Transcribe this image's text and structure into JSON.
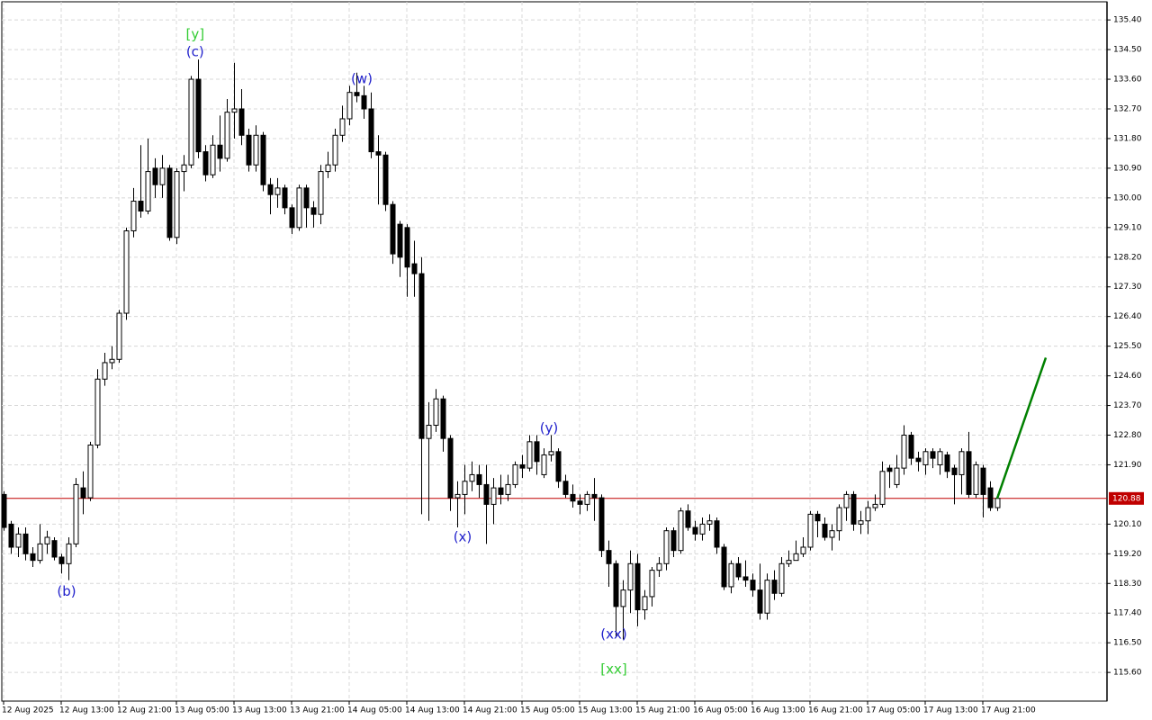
{
  "chart_data": {
    "type": "candlestick",
    "open": [
      121.0,
      120.1,
      119.4,
      119.8,
      119.2,
      119.0,
      119.5,
      119.6,
      119.1,
      118.9,
      119.5,
      121.2,
      120.9,
      122.5,
      124.5,
      125.0,
      125.1,
      126.5,
      129.0,
      129.9,
      129.6,
      130.9,
      130.4,
      130.9,
      128.8,
      130.8,
      131.0,
      133.6,
      131.4,
      130.7,
      131.6,
      131.2,
      132.6,
      132.7,
      131.9,
      131.0,
      131.9,
      130.4,
      130.1,
      130.3,
      129.7,
      129.1,
      130.3,
      129.7,
      129.5,
      130.8,
      131.0,
      131.9,
      132.4,
      133.2,
      133.1,
      132.7,
      131.4,
      131.3,
      129.8,
      129.2,
      129.1,
      128.0,
      127.7,
      122.7,
      123.1,
      123.9,
      122.7,
      120.9,
      121.0,
      121.4,
      121.6,
      121.3,
      120.7,
      121.2,
      121.0,
      121.3,
      121.9,
      121.8,
      122.6,
      121.6,
      122.2,
      122.3,
      121.4,
      121.0,
      120.8,
      120.7,
      121.0,
      120.9,
      119.3,
      118.9,
      117.6,
      118.1,
      118.9,
      117.5,
      117.9,
      118.7,
      118.9,
      119.9,
      119.3,
      120.5,
      120.0,
      119.8,
      120.1,
      120.2,
      119.4,
      118.2,
      118.9,
      118.5,
      118.4,
      118.1,
      117.4,
      118.4,
      118.0,
      118.9,
      119.0,
      119.2,
      119.4,
      120.4,
      120.1,
      119.7,
      119.9,
      120.6,
      121.0,
      120.1,
      120.2,
      120.6,
      120.7,
      121.8,
      121.3,
      121.8,
      122.8,
      122.1,
      121.9,
      122.3,
      121.9,
      122.2,
      121.8,
      121.6,
      122.3,
      121.0,
      121.8,
      121.2,
      120.6
    ],
    "high": [
      121.1,
      120.2,
      120.0,
      120.0,
      119.4,
      120.1,
      119.9,
      119.7,
      119.2,
      119.7,
      121.5,
      121.7,
      122.6,
      124.8,
      125.3,
      125.5,
      126.6,
      129.1,
      130.3,
      131.6,
      131.8,
      131.2,
      131.3,
      131.0,
      130.9,
      131.3,
      133.7,
      134.2,
      131.6,
      131.9,
      132.5,
      133.0,
      134.1,
      133.3,
      132.1,
      132.2,
      132.0,
      130.6,
      130.6,
      130.4,
      129.8,
      130.4,
      130.4,
      129.9,
      131.0,
      131.4,
      132.1,
      132.8,
      133.4,
      133.8,
      133.4,
      133.2,
      131.9,
      131.4,
      129.9,
      129.3,
      129.2,
      128.7,
      128.2,
      123.8,
      124.2,
      124.0,
      122.8,
      121.4,
      121.9,
      122.0,
      121.9,
      121.9,
      121.5,
      121.6,
      121.6,
      122.0,
      122.2,
      122.8,
      122.8,
      122.4,
      122.8,
      122.4,
      121.6,
      121.3,
      121.0,
      121.1,
      121.5,
      121.0,
      119.6,
      119.0,
      118.4,
      119.3,
      119.2,
      118.1,
      118.8,
      119.1,
      120.0,
      120.0,
      120.6,
      120.7,
      120.2,
      120.3,
      120.4,
      120.3,
      119.5,
      119.0,
      119.1,
      119.0,
      118.6,
      118.9,
      118.6,
      118.7,
      119.1,
      119.3,
      119.6,
      119.7,
      120.5,
      120.5,
      120.3,
      120.1,
      120.7,
      121.1,
      121.1,
      120.5,
      120.8,
      121.0,
      122.0,
      121.9,
      122.2,
      123.1,
      122.9,
      122.3,
      122.4,
      122.4,
      122.4,
      122.3,
      121.9,
      122.4,
      122.9,
      122.0,
      121.9,
      121.4,
      121.0
    ],
    "low": [
      119.9,
      119.2,
      119.1,
      119.0,
      118.8,
      118.9,
      119.2,
      119.0,
      118.6,
      118.4,
      119.4,
      120.4,
      120.8,
      122.4,
      124.3,
      124.8,
      125.0,
      126.3,
      128.8,
      129.4,
      129.5,
      130.0,
      130.0,
      128.7,
      128.6,
      130.2,
      130.9,
      131.2,
      130.5,
      130.6,
      130.8,
      131.1,
      131.8,
      131.6,
      130.8,
      130.8,
      130.2,
      129.5,
      129.7,
      129.5,
      128.9,
      129.0,
      129.1,
      129.1,
      129.2,
      130.6,
      130.8,
      131.7,
      132.2,
      132.9,
      132.4,
      131.2,
      129.8,
      129.6,
      128.0,
      127.6,
      127.0,
      127.0,
      120.4,
      120.2,
      122.9,
      122.3,
      120.5,
      120.0,
      120.4,
      121.1,
      120.9,
      119.5,
      120.1,
      120.7,
      120.8,
      121.2,
      121.5,
      121.7,
      121.6,
      121.5,
      122.0,
      121.2,
      120.9,
      120.6,
      120.4,
      120.5,
      120.2,
      119.1,
      118.2,
      116.7,
      116.6,
      117.4,
      117.0,
      117.2,
      117.6,
      118.5,
      118.7,
      119.1,
      119.2,
      119.9,
      119.6,
      119.6,
      119.9,
      119.2,
      118.1,
      118.0,
      118.4,
      118.2,
      117.9,
      117.2,
      117.2,
      117.8,
      117.9,
      118.8,
      119.0,
      119.1,
      119.3,
      119.7,
      119.6,
      119.3,
      119.6,
      120.2,
      119.9,
      119.8,
      119.8,
      120.5,
      120.6,
      121.2,
      121.2,
      121.6,
      121.9,
      121.7,
      121.6,
      121.8,
      121.6,
      121.5,
      120.7,
      121.0,
      120.9,
      120.9,
      120.3,
      120.5,
      120.5
    ],
    "close": [
      120.0,
      119.4,
      119.8,
      119.2,
      119.0,
      119.5,
      119.7,
      119.1,
      118.9,
      119.5,
      121.3,
      120.9,
      122.5,
      124.5,
      125.0,
      125.1,
      126.5,
      129.0,
      129.9,
      129.6,
      130.8,
      130.4,
      130.9,
      128.8,
      130.8,
      131.0,
      133.6,
      131.4,
      130.7,
      131.6,
      131.2,
      132.6,
      132.7,
      131.9,
      131.0,
      131.9,
      130.4,
      130.1,
      130.3,
      129.7,
      129.1,
      130.3,
      129.7,
      129.5,
      130.8,
      131.0,
      131.9,
      132.4,
      133.2,
      133.1,
      132.7,
      131.4,
      131.3,
      129.8,
      128.3,
      128.2,
      127.9,
      127.7,
      122.7,
      123.1,
      123.9,
      122.7,
      120.9,
      121.0,
      121.4,
      121.6,
      121.3,
      120.7,
      121.2,
      121.0,
      121.3,
      121.9,
      121.8,
      122.6,
      122.0,
      122.2,
      122.3,
      121.4,
      121.0,
      120.8,
      120.7,
      121.0,
      120.9,
      119.3,
      118.9,
      117.6,
      118.1,
      118.9,
      117.5,
      117.9,
      118.7,
      118.9,
      119.9,
      119.3,
      120.5,
      120.0,
      119.8,
      120.1,
      120.2,
      119.4,
      118.2,
      118.9,
      118.5,
      118.4,
      118.1,
      117.4,
      118.4,
      118.0,
      118.9,
      119.0,
      119.2,
      119.4,
      120.4,
      120.2,
      119.7,
      119.9,
      120.6,
      121.0,
      120.1,
      120.2,
      120.6,
      120.7,
      121.7,
      121.7,
      121.8,
      122.8,
      122.1,
      122.0,
      122.3,
      122.1,
      122.3,
      121.7,
      121.6,
      122.3,
      121.0,
      121.9,
      121.0,
      120.6,
      120.88
    ],
    "up_color": "#ffffff",
    "down_color": "#000000",
    "xlim": [
      -0.25,
      153.25
    ],
    "xticks": [
      {
        "value": 0,
        "label": "12 Aug 2025"
      },
      {
        "value": 8,
        "label": "12 Aug 13:00"
      },
      {
        "value": 16,
        "label": "12 Aug 21:00"
      },
      {
        "value": 24,
        "label": "13 Aug 05:00"
      },
      {
        "value": 32,
        "label": "13 Aug 13:00"
      },
      {
        "value": 40,
        "label": "13 Aug 21:00"
      },
      {
        "value": 48,
        "label": "14 Aug 05:00"
      },
      {
        "value": 56,
        "label": "14 Aug 13:00"
      },
      {
        "value": 64,
        "label": "14 Aug 21:00"
      },
      {
        "value": 72,
        "label": "15 Aug 05:00"
      },
      {
        "value": 80,
        "label": "15 Aug 13:00"
      },
      {
        "value": 88,
        "label": "15 Aug 21:00"
      },
      {
        "value": 96,
        "label": "16 Aug 05:00"
      },
      {
        "value": 104,
        "label": "16 Aug 13:00"
      },
      {
        "value": 112,
        "label": "16 Aug 21:00"
      },
      {
        "value": 120,
        "label": "17 Aug 05:00"
      },
      {
        "value": 128,
        "label": "17 Aug 13:00"
      },
      {
        "value": 136,
        "label": "17 Aug 21:00"
      }
    ],
    "ylim": [
      114.73,
      135.95
    ],
    "yticks": [
      {
        "value": 135.4,
        "label": "135.40"
      },
      {
        "value": 134.5,
        "label": "134.50"
      },
      {
        "value": 133.6,
        "label": "133.60"
      },
      {
        "value": 132.7,
        "label": "132.70"
      },
      {
        "value": 131.8,
        "label": "131.80"
      },
      {
        "value": 130.9,
        "label": "130.90"
      },
      {
        "value": 130.0,
        "label": "130.00"
      },
      {
        "value": 129.1,
        "label": "129.10"
      },
      {
        "value": 128.2,
        "label": "128.20"
      },
      {
        "value": 127.3,
        "label": "127.30"
      },
      {
        "value": 126.4,
        "label": "126.40"
      },
      {
        "value": 125.5,
        "label": "125.50"
      },
      {
        "value": 124.6,
        "label": "124.60"
      },
      {
        "value": 123.7,
        "label": "123.70"
      },
      {
        "value": 122.8,
        "label": "122.80"
      },
      {
        "value": 121.9,
        "label": "121.90"
      },
      {
        "value": 120.1,
        "label": "120.10"
      },
      {
        "value": 119.2,
        "label": "119.20"
      },
      {
        "value": 118.3,
        "label": "118.30"
      },
      {
        "value": 117.4,
        "label": "117.40"
      },
      {
        "value": 116.5,
        "label": "116.50"
      },
      {
        "value": 115.6,
        "label": "115.60"
      }
    ],
    "grid": true,
    "last_price": 120.88,
    "last_price_color": "#c00000",
    "projection": {
      "x": [
        138,
        144.75
      ],
      "y": [
        120.88,
        125.15
      ],
      "color": "#008000"
    },
    "annotations": [
      {
        "text": "(b)",
        "x": 8.75,
        "y": 118.05,
        "color": "#2222cc"
      },
      {
        "text": "[y]",
        "x": 26.6,
        "y": 134.96,
        "color": "#33cc33"
      },
      {
        "text": "(c)",
        "x": 26.6,
        "y": 134.42,
        "color": "#2222cc"
      },
      {
        "text": "(w)",
        "x": 49.75,
        "y": 133.6,
        "color": "#2222cc"
      },
      {
        "text": "(x)",
        "x": 63.75,
        "y": 119.7,
        "color": "#2222cc"
      },
      {
        "text": "(y)",
        "x": 75.75,
        "y": 123.0,
        "color": "#2222cc"
      },
      {
        "text": "(xx)",
        "x": 84.75,
        "y": 116.75,
        "color": "#2222cc"
      },
      {
        "text": "[xx]",
        "x": 84.75,
        "y": 115.68,
        "color": "#33cc33"
      }
    ]
  }
}
